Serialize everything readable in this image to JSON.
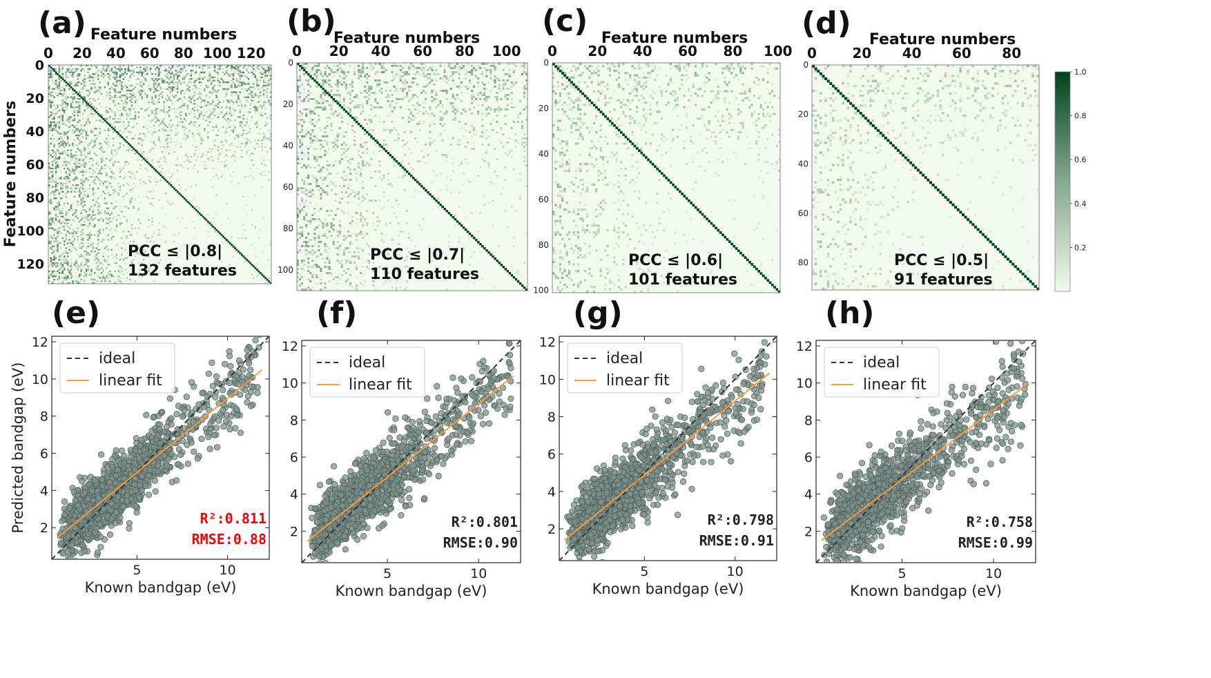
{
  "chart_data": [
    {
      "type": "heatmap",
      "panel": "(a)",
      "title": "Feature numbers",
      "ylabel": "Feature numbers",
      "n_features": 132,
      "xticks": [
        "0",
        "20",
        "40",
        "60",
        "80",
        "100",
        "120"
      ],
      "yticks": [
        "0",
        "20",
        "40",
        "60",
        "80",
        "100",
        "120"
      ],
      "annotation_line1": "PCC ≤ |0.8|",
      "annotation_line2": "132 features"
    },
    {
      "type": "heatmap",
      "panel": "(b)",
      "title": "Feature numbers",
      "n_features": 110,
      "xticks": [
        "0",
        "20",
        "40",
        "60",
        "80",
        "100"
      ],
      "yticks": [
        "0",
        "20",
        "40",
        "60",
        "80",
        "100"
      ],
      "annotation_line1": "PCC ≤ |0.7|",
      "annotation_line2": "110 features"
    },
    {
      "type": "heatmap",
      "panel": "(c)",
      "title": "Feature numbers",
      "n_features": 101,
      "xticks": [
        "0",
        "20",
        "40",
        "60",
        "80",
        "100"
      ],
      "yticks": [
        "0",
        "20",
        "40",
        "60",
        "80",
        "100"
      ],
      "annotation_line1": "PCC ≤ |0.6|",
      "annotation_line2": "101 features"
    },
    {
      "type": "heatmap",
      "panel": "(d)",
      "title": "Feature numbers",
      "n_features": 91,
      "xticks": [
        "0",
        "20",
        "40",
        "60",
        "80"
      ],
      "yticks": [
        "0",
        "20",
        "40",
        "60",
        "80"
      ],
      "annotation_line1": "PCC ≤ |0.5|",
      "annotation_line2": "91 features"
    },
    {
      "type": "colorbar",
      "range": [
        0,
        1.0
      ],
      "ticks": [
        "0.2",
        "0.4",
        "0.6",
        "0.8",
        "1.0"
      ],
      "colormap": "Greens"
    },
    {
      "type": "scatter",
      "panel": "(e)",
      "xlabel": "Known bandgap (eV)",
      "ylabel": "Predicted bandgap (eV)",
      "xlim": [
        0.3,
        12.3
      ],
      "ylim": [
        0.3,
        12.3
      ],
      "xticks": [
        "5",
        "10"
      ],
      "yticks": [
        "2",
        "4",
        "6",
        "8",
        "10",
        "12"
      ],
      "legend": [
        "ideal",
        "linear fit"
      ],
      "fit": {
        "slope": 0.8,
        "intercept": 0.97
      },
      "r2": "R²:0.811",
      "rmse": "RMSE:0.88",
      "metric_color": "#ff0000"
    },
    {
      "type": "scatter",
      "panel": "(f)",
      "xlabel": "Known bandgap (eV)",
      "ylabel": "",
      "xlim": [
        0.3,
        12.3
      ],
      "ylim": [
        0.3,
        12.3
      ],
      "xticks": [
        "5",
        "10"
      ],
      "yticks": [
        "2",
        "4",
        "6",
        "8",
        "10",
        "12"
      ],
      "legend": [
        "ideal",
        "linear fit"
      ],
      "fit": {
        "slope": 0.79,
        "intercept": 0.98
      },
      "r2": "R²:0.801",
      "rmse": "RMSE:0.90",
      "metric_color": "#222222"
    },
    {
      "type": "scatter",
      "panel": "(g)",
      "xlabel": "Known bandgap (eV)",
      "ylabel": "",
      "xlim": [
        0.3,
        12.3
      ],
      "ylim": [
        0.3,
        12.3
      ],
      "xticks": [
        "5",
        "10"
      ],
      "yticks": [
        "2",
        "4",
        "6",
        "8",
        "10",
        "12"
      ],
      "legend": [
        "ideal",
        "linear fit"
      ],
      "fit": {
        "slope": 0.79,
        "intercept": 0.93
      },
      "r2": "R²:0.798",
      "rmse": "RMSE:0.91",
      "metric_color": "#222222"
    },
    {
      "type": "scatter",
      "panel": "(h)",
      "xlabel": "Known bandgap (eV)",
      "ylabel": "",
      "xlim": [
        0.3,
        12.3
      ],
      "ylim": [
        0.3,
        12.3
      ],
      "xticks": [
        "5",
        "10"
      ],
      "yticks": [
        "2",
        "4",
        "6",
        "8",
        "10",
        "12"
      ],
      "legend": [
        "ideal",
        "linear fit"
      ],
      "fit": {
        "slope": 0.75,
        "intercept": 1.05
      },
      "r2": "R²:0.758",
      "rmse": "RMSE:0.99",
      "metric_color": "#222222"
    }
  ],
  "colors": {
    "heat_low": "#f2faef",
    "heat_high": "#00441b",
    "point_fill": "#7f938d",
    "point_edge": "#4d5f5a",
    "fit_line": "#ff9933",
    "ideal_line": "#333333"
  }
}
